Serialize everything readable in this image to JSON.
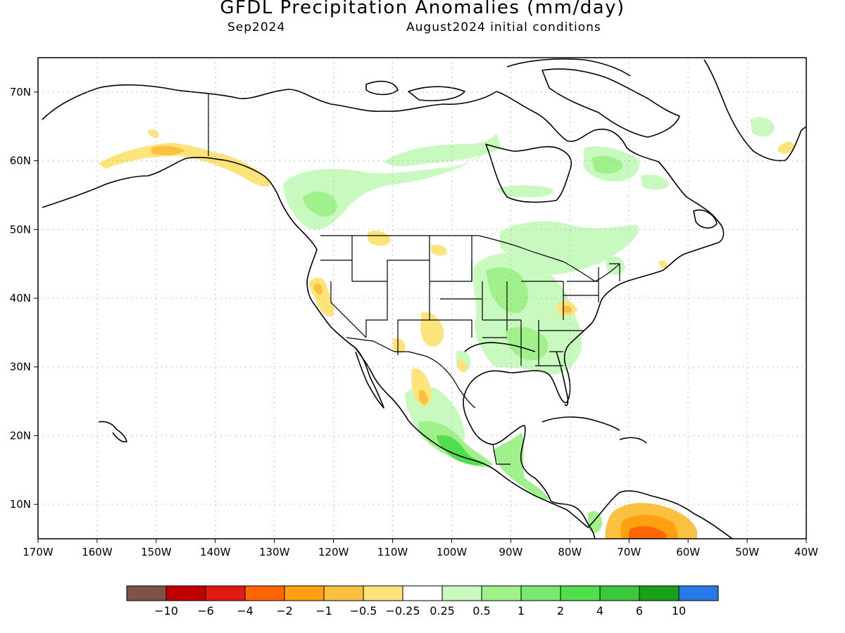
{
  "title": "GFDL Precipitation Anomalies (mm/day)",
  "subtitle_left": "Sep2024",
  "subtitle_right": "August2024 initial conditions",
  "map": {
    "lon_range": [
      -170,
      -40
    ],
    "lat_range": [
      5,
      75
    ],
    "lon_ticks": [
      "170W",
      "160W",
      "150W",
      "140W",
      "130W",
      "120W",
      "110W",
      "100W",
      "90W",
      "80W",
      "70W",
      "60W",
      "50W",
      "40W"
    ],
    "lat_ticks": [
      "10N",
      "20N",
      "30N",
      "40N",
      "50N",
      "60N",
      "70N"
    ],
    "grid": "dotted"
  },
  "colorbar": {
    "colors": [
      "#7f5246",
      "#c00000",
      "#e01a10",
      "#ff6600",
      "#ffa010",
      "#fcc040",
      "#fde47a",
      "#ffffff",
      "#c8fac0",
      "#a0f08c",
      "#78e870",
      "#50de4c",
      "#3cc83c",
      "#18a018",
      "#2878e8"
    ],
    "labels": [
      "−10",
      "−6",
      "−4",
      "−2",
      "−1",
      "−0.5",
      "−0.25",
      "0.25",
      "0.5",
      "1",
      "2",
      "4",
      "6",
      "10"
    ]
  },
  "colors": {
    "wet_light": "#c8fac0",
    "wet_mid": "#a0f08c",
    "wet_strong": "#50de4c",
    "dry_light": "#fde47a",
    "dry_mid": "#fcc040",
    "dry_strong": "#ff6600"
  }
}
